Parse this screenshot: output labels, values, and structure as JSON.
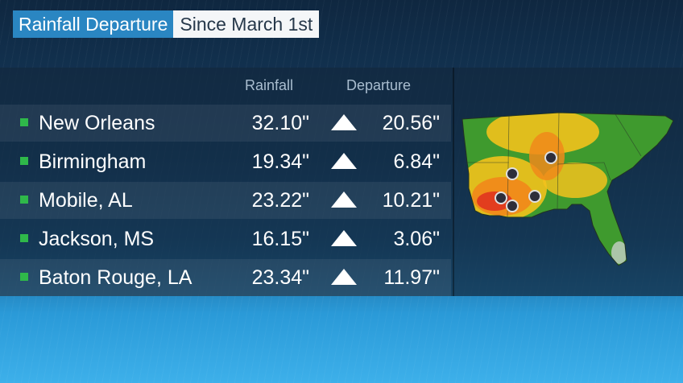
{
  "title": {
    "main": "Rainfall Departure",
    "sub": "Since March 1st"
  },
  "table": {
    "headers": {
      "rainfall": "Rainfall",
      "departure": "Departure"
    },
    "rows": [
      {
        "city": "New Orleans",
        "rainfall": "32.10\"",
        "departure": "20.56\"",
        "trend": "up-arrow-icon"
      },
      {
        "city": "Birmingham",
        "rainfall": "19.34\"",
        "departure": "6.84\"",
        "trend": "up-arrow-icon"
      },
      {
        "city": "Mobile, AL",
        "rainfall": "23.22\"",
        "departure": "10.21\"",
        "trend": "up-arrow-icon"
      },
      {
        "city": "Jackson, MS",
        "rainfall": "16.15\"",
        "departure": "3.06\"",
        "trend": "up-arrow-icon"
      },
      {
        "city": "Baton Rouge, LA",
        "rainfall": "23.34\"",
        "departure": "11.97\"",
        "trend": "up-arrow-icon"
      }
    ]
  },
  "colors": {
    "title_bg": "#2a86c2",
    "bullet": "#2fb84a",
    "map_green": "#3f9a2e",
    "map_yellow": "#f2c21c",
    "map_orange": "#f08a1a",
    "map_red": "#e0391f"
  }
}
